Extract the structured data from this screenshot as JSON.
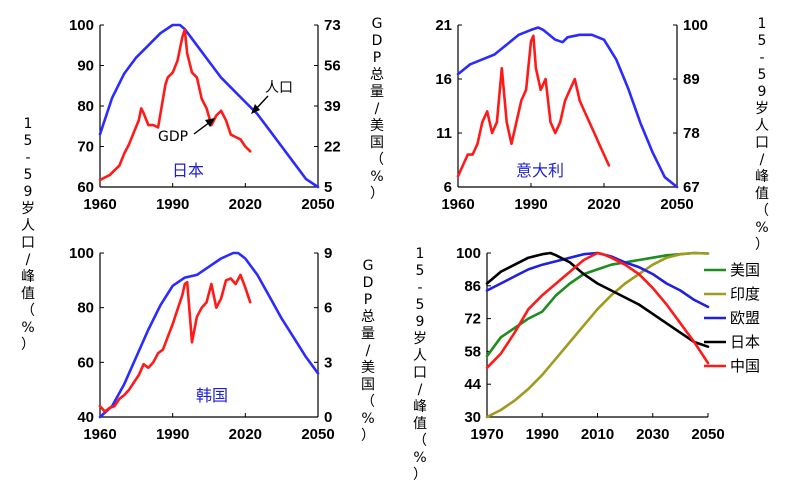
{
  "chart_data": [
    {
      "id": "japan",
      "type": "line",
      "panel_label": "日本",
      "x_ticks": [
        "1960",
        "1990",
        "2020",
        "2050"
      ],
      "xlim": [
        1960,
        2050
      ],
      "left_axis": {
        "label": "15-59岁人口/峰值（%）",
        "ticks": [
          "60",
          "70",
          "80",
          "90",
          "100"
        ],
        "range": [
          60,
          100
        ]
      },
      "right_axis": {
        "label": "GDP总量/美国（%）",
        "ticks": [
          "5",
          "22",
          "39",
          "56",
          "73"
        ],
        "range": [
          5,
          73
        ]
      },
      "annotations": {
        "population": "人口",
        "gdp": "GDP"
      },
      "series": [
        {
          "name": "人口",
          "axis": "left",
          "color": "#2b2bff",
          "x": [
            1960,
            1965,
            1970,
            1975,
            1980,
            1985,
            1990,
            1993,
            1995,
            2000,
            2005,
            2010,
            2015,
            2020,
            2025,
            2030,
            2035,
            2040,
            2045,
            2050
          ],
          "y": [
            73,
            82,
            88,
            92,
            95,
            98,
            100,
            100,
            99,
            95,
            91,
            87,
            84,
            81,
            78,
            74,
            70,
            66,
            62,
            60
          ]
        },
        {
          "name": "GDP",
          "axis": "right",
          "color": "#ff1a1a",
          "x": [
            1960,
            1962,
            1964,
            1966,
            1968,
            1970,
            1972,
            1974,
            1976,
            1977,
            1978,
            1980,
            1982,
            1984,
            1986,
            1987,
            1988,
            1990,
            1992,
            1994,
            1995,
            1996,
            1998,
            2000,
            2002,
            2004,
            2006,
            2008,
            2010,
            2012,
            2014,
            2016,
            2018,
            2020,
            2022
          ],
          "y": [
            8,
            9,
            10,
            12,
            14,
            19,
            23,
            28,
            33,
            38,
            36,
            31,
            31,
            30,
            42,
            48,
            51,
            53,
            58,
            68,
            71,
            61,
            53,
            51,
            42,
            38,
            31,
            35,
            37,
            33,
            27,
            26,
            25,
            22,
            20
          ]
        }
      ]
    },
    {
      "id": "italy",
      "type": "line",
      "panel_label": "意大利",
      "x_ticks": [
        "1960",
        "1990",
        "2020",
        "2050"
      ],
      "xlim": [
        1960,
        2050
      ],
      "left_axis": {
        "label": "",
        "ticks": [
          "6",
          "11",
          "16",
          "21"
        ],
        "range": [
          6,
          21
        ]
      },
      "right_axis": {
        "label": "15-59岁人口/峰值（%）",
        "ticks": [
          "67",
          "78",
          "89",
          "100"
        ],
        "range": [
          67,
          100
        ]
      },
      "series": [
        {
          "name": "人口",
          "axis": "right",
          "color": "#2b2bff",
          "x": [
            1960,
            1965,
            1970,
            1975,
            1980,
            1985,
            1990,
            1993,
            1995,
            2000,
            2003,
            2005,
            2010,
            2015,
            2020,
            2025,
            2030,
            2035,
            2040,
            2045,
            2050
          ],
          "y": [
            90,
            92,
            93,
            94,
            96,
            98,
            99,
            99.5,
            99,
            97,
            96.5,
            97.5,
            98,
            98,
            97,
            93,
            87,
            80,
            74,
            69,
            67
          ]
        },
        {
          "name": "GDP",
          "axis": "left",
          "color": "#ff1a1a",
          "x": [
            1960,
            1962,
            1964,
            1966,
            1968,
            1970,
            1972,
            1974,
            1976,
            1978,
            1980,
            1982,
            1984,
            1986,
            1988,
            1990,
            1991,
            1992,
            1994,
            1996,
            1998,
            2000,
            2002,
            2004,
            2006,
            2008,
            2010,
            2012,
            2014,
            2016,
            2018,
            2020,
            2022
          ],
          "y": [
            7,
            8,
            9,
            9,
            10,
            12,
            13,
            11,
            12,
            17,
            12,
            10,
            12,
            14,
            15,
            19.5,
            20,
            17,
            15,
            16,
            12,
            11,
            12,
            14,
            15,
            16,
            14,
            13,
            12,
            11,
            10,
            9,
            8
          ]
        }
      ]
    },
    {
      "id": "korea",
      "type": "line",
      "panel_label": "韩国",
      "x_ticks": [
        "1960",
        "1990",
        "2020",
        "2050"
      ],
      "xlim": [
        1960,
        2050
      ],
      "left_axis": {
        "label": "",
        "ticks": [
          "40",
          "60",
          "80",
          "100"
        ],
        "range": [
          40,
          100
        ]
      },
      "right_axis": {
        "label": "GDP总量/美国（%）",
        "ticks": [
          "0",
          "3",
          "6",
          "9"
        ],
        "range": [
          0,
          9
        ]
      },
      "series": [
        {
          "name": "人口",
          "axis": "left",
          "color": "#2b2bff",
          "x": [
            1960,
            1965,
            1970,
            1975,
            1980,
            1985,
            1990,
            1995,
            2000,
            2005,
            2010,
            2015,
            2017,
            2020,
            2025,
            2030,
            2035,
            2040,
            2045,
            2050
          ],
          "y": [
            40,
            44,
            52,
            62,
            72,
            81,
            88,
            91,
            92,
            95,
            98,
            100,
            100,
            98,
            92,
            84,
            76,
            69,
            62,
            56
          ]
        },
        {
          "name": "GDP",
          "axis": "right",
          "color": "#ff1a1a",
          "x": [
            1960,
            1962,
            1964,
            1966,
            1968,
            1970,
            1972,
            1974,
            1976,
            1978,
            1980,
            1982,
            1984,
            1986,
            1988,
            1990,
            1992,
            1994,
            1995,
            1996,
            1998,
            2000,
            2002,
            2004,
            2006,
            2008,
            2010,
            2012,
            2014,
            2016,
            2018,
            2020,
            2022
          ],
          "y": [
            0.6,
            0.3,
            0.5,
            0.6,
            1.0,
            1.2,
            1.5,
            1.9,
            2.3,
            2.9,
            2.7,
            3.0,
            3.5,
            3.7,
            4.4,
            5.1,
            5.9,
            6.7,
            7.3,
            7.4,
            4.1,
            5.5,
            6.0,
            6.3,
            7.3,
            6.0,
            6.5,
            7.5,
            7.6,
            7.3,
            7.8,
            7.1,
            6.3
          ]
        }
      ]
    },
    {
      "id": "comparison",
      "type": "line",
      "x_ticks": [
        "1970",
        "1990",
        "2010",
        "2030",
        "2050"
      ],
      "xlim": [
        1970,
        2050
      ],
      "left_axis": {
        "label": "15-59岁人口/峰值（%）",
        "ticks": [
          "30",
          "44",
          "58",
          "72",
          "86",
          "100"
        ],
        "range": [
          30,
          100
        ]
      },
      "legend_position": "right",
      "series": [
        {
          "name": "美国",
          "color": "#1e8c1e",
          "x": [
            1970,
            1975,
            1980,
            1985,
            1990,
            1995,
            2000,
            2005,
            2010,
            2015,
            2020,
            2025,
            2030,
            2035,
            2040,
            2045,
            2050
          ],
          "y": [
            56,
            64,
            68,
            72,
            75,
            82,
            87,
            91,
            93,
            95,
            96,
            97,
            98,
            99,
            99.5,
            100,
            99.8
          ]
        },
        {
          "name": "印度",
          "color": "#a09a1e",
          "x": [
            1970,
            1975,
            1980,
            1985,
            1990,
            1995,
            2000,
            2005,
            2010,
            2015,
            2020,
            2025,
            2030,
            2035,
            2040,
            2045,
            2050
          ],
          "y": [
            30,
            33,
            37,
            42,
            48,
            55,
            62,
            69,
            76,
            82,
            87,
            91,
            95,
            98,
            99.5,
            100,
            99.8
          ]
        },
        {
          "name": "欧盟",
          "color": "#2020e0",
          "x": [
            1970,
            1975,
            1980,
            1985,
            1990,
            1995,
            2000,
            2005,
            2010,
            2015,
            2020,
            2025,
            2030,
            2035,
            2040,
            2045,
            2050
          ],
          "y": [
            84,
            87,
            90,
            93,
            95,
            96.5,
            98,
            99.5,
            100,
            98.5,
            96,
            94,
            91,
            87,
            84,
            80,
            77
          ]
        },
        {
          "name": "日本",
          "color": "#000000",
          "x": [
            1970,
            1975,
            1980,
            1985,
            1990,
            1993,
            1995,
            2000,
            2005,
            2010,
            2015,
            2020,
            2025,
            2030,
            2035,
            2040,
            2045,
            2050
          ],
          "y": [
            87,
            92,
            95,
            98,
            99.5,
            100,
            99,
            96,
            91,
            87,
            84,
            81,
            78,
            74,
            70,
            66,
            62,
            60
          ]
        },
        {
          "name": "中国",
          "color": "#ff1a1a",
          "x": [
            1970,
            1975,
            1980,
            1985,
            1990,
            1995,
            2000,
            2005,
            2010,
            2012,
            2015,
            2020,
            2025,
            2030,
            2035,
            2040,
            2045,
            2050
          ],
          "y": [
            51,
            57,
            66,
            76,
            82,
            87,
            92,
            97,
            100,
            99.5,
            98,
            95,
            91,
            85,
            78,
            70,
            62,
            53
          ]
        }
      ]
    }
  ]
}
